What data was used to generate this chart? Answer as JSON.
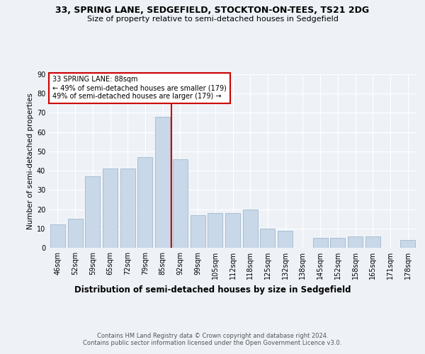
{
  "title1": "33, SPRING LANE, SEDGEFIELD, STOCKTON-ON-TEES, TS21 2DG",
  "title2": "Size of property relative to semi-detached houses in Sedgefield",
  "xlabel": "Distribution of semi-detached houses by size in Sedgefield",
  "ylabel": "Number of semi-detached properties",
  "categories": [
    "46sqm",
    "52sqm",
    "59sqm",
    "65sqm",
    "72sqm",
    "79sqm",
    "85sqm",
    "92sqm",
    "99sqm",
    "105sqm",
    "112sqm",
    "118sqm",
    "125sqm",
    "132sqm",
    "138sqm",
    "145sqm",
    "152sqm",
    "158sqm",
    "165sqm",
    "171sqm",
    "178sqm"
  ],
  "values": [
    12,
    15,
    37,
    41,
    41,
    47,
    68,
    46,
    17,
    18,
    18,
    20,
    10,
    9,
    0,
    5,
    5,
    6,
    6,
    0,
    4
  ],
  "bar_color": "#c8d8e8",
  "bar_edgecolor": "#a0b8cc",
  "vline_x": 6.5,
  "vline_color": "#cc0000",
  "annotation_text": "33 SPRING LANE: 88sqm\n← 49% of semi-detached houses are smaller (179)\n49% of semi-detached houses are larger (179) →",
  "annotation_box_edgecolor": "#cc0000",
  "annotation_box_facecolor": "#ffffff",
  "ylim": [
    0,
    90
  ],
  "yticks": [
    0,
    10,
    20,
    30,
    40,
    50,
    60,
    70,
    80,
    90
  ],
  "footer": "Contains HM Land Registry data © Crown copyright and database right 2024.\nContains public sector information licensed under the Open Government Licence v3.0.",
  "bg_color": "#eef2f7",
  "plot_bg_color": "#eef2f7",
  "title1_fontsize": 9,
  "title2_fontsize": 8,
  "xlabel_fontsize": 8.5,
  "ylabel_fontsize": 7.5,
  "tick_fontsize": 7,
  "annotation_fontsize": 7,
  "footer_fontsize": 6
}
